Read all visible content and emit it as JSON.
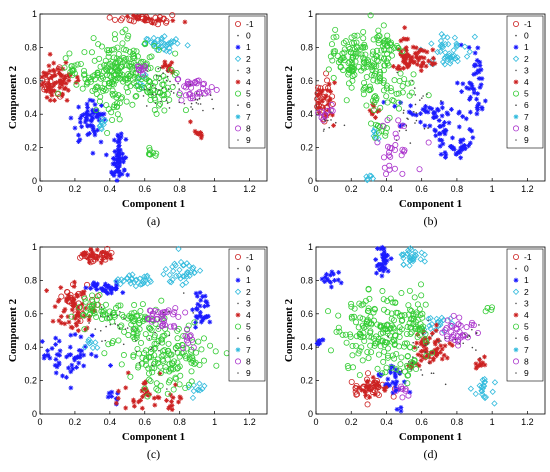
{
  "figure": {
    "legend_entries": [
      {
        "label": "-1",
        "color": "#cc2222",
        "marker": "circle"
      },
      {
        "label": "0",
        "color": "#444444",
        "marker": "dot"
      },
      {
        "label": "1",
        "color": "#1a1aff",
        "marker": "star"
      },
      {
        "label": "2",
        "color": "#33bbdd",
        "marker": "diamond"
      },
      {
        "label": "3",
        "color": "#555555",
        "marker": "dot"
      },
      {
        "label": "4",
        "color": "#cc2222",
        "marker": "star"
      },
      {
        "label": "5",
        "color": "#33cc33",
        "marker": "circle"
      },
      {
        "label": "6",
        "color": "#444444",
        "marker": "dot"
      },
      {
        "label": "7",
        "color": "#33bbdd",
        "marker": "star"
      },
      {
        "label": "8",
        "color": "#aa33cc",
        "marker": "circle"
      },
      {
        "label": "9",
        "color": "#555555",
        "marker": "dot"
      }
    ]
  },
  "chart_data": [
    {
      "type": "scatter",
      "panel_label": "(a)",
      "xlabel": "Component 1",
      "ylabel": "Component 2",
      "xlim": [
        0,
        1.3
      ],
      "ylim": [
        0,
        1
      ],
      "xticks": [
        "0",
        "0.2",
        "0.4",
        "0.6",
        "0.8",
        "1",
        "1.2"
      ],
      "yticks": [
        "0",
        "0.2",
        "0.4",
        "0.6",
        "0.8",
        "1"
      ],
      "series": [
        {
          "name": "-1",
          "color": "#cc2222",
          "marker": "circle",
          "clusters": [
            [
              0.6,
              0.97,
              0.08,
              0.015,
              25
            ],
            [
              0.06,
              0.6,
              0.03,
              0.06,
              15
            ]
          ]
        },
        {
          "name": "1",
          "color": "#1a1aff",
          "marker": "star",
          "clusters": [
            [
              0.45,
              0.12,
              0.02,
              0.1,
              70
            ],
            [
              0.28,
              0.35,
              0.05,
              0.06,
              45
            ],
            [
              0.3,
              0.4,
              0.03,
              0.03,
              15
            ]
          ]
        },
        {
          "name": "2",
          "color": "#33bbdd",
          "marker": "diamond",
          "clusters": [
            [
              0.72,
              0.82,
              0.06,
              0.02,
              35
            ],
            [
              0.36,
              0.34,
              0.02,
              0.02,
              10
            ],
            [
              0.58,
              0.6,
              0.02,
              0.02,
              8
            ]
          ]
        },
        {
          "name": "4",
          "color": "#cc2222",
          "marker": "star",
          "clusters": [
            [
              0.08,
              0.58,
              0.04,
              0.06,
              50
            ],
            [
              0.15,
              0.62,
              0.03,
              0.04,
              20
            ],
            [
              0.75,
              0.68,
              0.03,
              0.02,
              12
            ],
            [
              0.9,
              0.3,
              0.02,
              0.02,
              10
            ],
            [
              0.62,
              0.97,
              0.07,
              0.01,
              20
            ]
          ]
        },
        {
          "name": "5",
          "color": "#33cc33",
          "marker": "circle",
          "clusters": [
            [
              0.45,
              0.65,
              0.12,
              0.1,
              170
            ],
            [
              0.42,
              0.62,
              0.03,
              0.15,
              40
            ],
            [
              0.66,
              0.55,
              0.06,
              0.06,
              45
            ],
            [
              0.18,
              0.68,
              0.02,
              0.03,
              12
            ],
            [
              0.64,
              0.18,
              0.02,
              0.02,
              8
            ]
          ]
        },
        {
          "name": "8",
          "color": "#aa33cc",
          "marker": "circle",
          "clusters": [
            [
              0.88,
              0.55,
              0.05,
              0.04,
              35
            ],
            [
              0.58,
              0.68,
              0.02,
              0.02,
              10
            ]
          ]
        },
        {
          "name": "0",
          "color": "#444444",
          "marker": "dot",
          "clusters": [
            [
              0.7,
              0.55,
              0.08,
              0.08,
              30
            ],
            [
              0.88,
              0.5,
              0.06,
              0.05,
              20
            ]
          ]
        }
      ]
    },
    {
      "type": "scatter",
      "panel_label": "(b)",
      "xlabel": "Component 1",
      "ylabel": "Component 2",
      "xlim": [
        0,
        1.3
      ],
      "ylim": [
        0,
        1
      ],
      "xticks": [
        "0",
        "0.2",
        "0.4",
        "0.6",
        "0.8",
        "1",
        "1.2"
      ],
      "yticks": [
        "0",
        "0.2",
        "0.4",
        "0.6",
        "0.8",
        "1"
      ],
      "series": [
        {
          "name": "-1",
          "color": "#cc2222",
          "marker": "circle",
          "clusters": [
            [
              0.04,
              0.48,
              0.03,
              0.07,
              30
            ]
          ]
        },
        {
          "name": "1",
          "color": "#1a1aff",
          "marker": "star",
          "clusters": [
            [
              0.9,
              0.55,
              0.04,
              0.12,
              50
            ],
            [
              0.8,
              0.2,
              0.04,
              0.03,
              30
            ],
            [
              0.65,
              0.4,
              0.1,
              0.04,
              40
            ],
            [
              0.7,
              0.3,
              0.03,
              0.03,
              15
            ]
          ]
        },
        {
          "name": "2",
          "color": "#33bbdd",
          "marker": "diamond",
          "clusters": [
            [
              0.75,
              0.78,
              0.05,
              0.05,
              45
            ],
            [
              0.32,
              0.28,
              0.02,
              0.02,
              8
            ],
            [
              0.3,
              0.02,
              0.02,
              0.01,
              6
            ]
          ]
        },
        {
          "name": "4",
          "color": "#cc2222",
          "marker": "star",
          "clusters": [
            [
              0.55,
              0.72,
              0.06,
              0.04,
              55
            ],
            [
              0.5,
              0.8,
              0.02,
              0.05,
              15
            ],
            [
              0.04,
              0.48,
              0.03,
              0.07,
              25
            ],
            [
              0.33,
              0.42,
              0.02,
              0.02,
              8
            ]
          ]
        },
        {
          "name": "5",
          "color": "#33cc33",
          "marker": "circle",
          "clusters": [
            [
              0.25,
              0.73,
              0.1,
              0.08,
              140
            ],
            [
              0.4,
              0.55,
              0.08,
              0.1,
              50
            ],
            [
              0.35,
              0.3,
              0.03,
              0.03,
              12
            ],
            [
              0.42,
              0.8,
              0.04,
              0.03,
              20
            ]
          ]
        },
        {
          "name": "8",
          "color": "#aa33cc",
          "marker": "circle",
          "clusters": [
            [
              0.45,
              0.18,
              0.05,
              0.08,
              30
            ],
            [
              0.06,
              0.4,
              0.02,
              0.03,
              10
            ]
          ]
        },
        {
          "name": "0",
          "color": "#444444",
          "marker": "dot",
          "clusters": [
            [
              0.55,
              0.4,
              0.06,
              0.1,
              25
            ],
            [
              0.05,
              0.35,
              0.03,
              0.03,
              10
            ]
          ]
        }
      ]
    },
    {
      "type": "scatter",
      "panel_label": "(c)",
      "xlabel": "Component 1",
      "ylabel": "Component 2",
      "xlim": [
        0,
        1.3
      ],
      "ylim": [
        0,
        1
      ],
      "xticks": [
        "0",
        "0.2",
        "0.4",
        "0.6",
        "0.8",
        "1",
        "1.2"
      ],
      "yticks": [
        "0",
        "0.2",
        "0.4",
        "0.6",
        "0.8",
        "1"
      ],
      "series": [
        {
          "name": "-1",
          "color": "#cc2222",
          "marker": "circle",
          "clusters": [
            [
              0.33,
              0.95,
              0.06,
              0.02,
              25
            ],
            [
              0.22,
              0.68,
              0.05,
              0.05,
              25
            ]
          ]
        },
        {
          "name": "1",
          "color": "#1a1aff",
          "marker": "star",
          "clusters": [
            [
              0.38,
              0.75,
              0.05,
              0.02,
              35
            ],
            [
              0.15,
              0.35,
              0.1,
              0.06,
              55
            ],
            [
              0.93,
              0.62,
              0.03,
              0.06,
              30
            ],
            [
              0.42,
              0.1,
              0.02,
              0.02,
              8
            ]
          ]
        },
        {
          "name": "2",
          "color": "#33bbdd",
          "marker": "diamond",
          "clusters": [
            [
              0.55,
              0.8,
              0.06,
              0.02,
              30
            ],
            [
              0.82,
              0.85,
              0.05,
              0.04,
              35
            ],
            [
              0.9,
              0.15,
              0.02,
              0.02,
              10
            ],
            [
              0.3,
              0.42,
              0.02,
              0.02,
              8
            ]
          ]
        },
        {
          "name": "4",
          "color": "#cc2222",
          "marker": "star",
          "clusters": [
            [
              0.2,
              0.63,
              0.06,
              0.08,
              60
            ],
            [
              0.32,
              0.95,
              0.06,
              0.02,
              25
            ],
            [
              0.58,
              0.12,
              0.06,
              0.05,
              30
            ],
            [
              0.77,
              0.08,
              0.03,
              0.03,
              12
            ]
          ]
        },
        {
          "name": "5",
          "color": "#33cc33",
          "marker": "circle",
          "clusters": [
            [
              0.72,
              0.35,
              0.12,
              0.1,
              150
            ],
            [
              0.55,
              0.55,
              0.06,
              0.06,
              45
            ],
            [
              0.42,
              0.6,
              0.04,
              0.03,
              20
            ],
            [
              0.28,
              0.62,
              0.04,
              0.04,
              25
            ]
          ]
        },
        {
          "name": "8",
          "color": "#aa33cc",
          "marker": "circle",
          "clusters": [
            [
              0.7,
              0.58,
              0.06,
              0.04,
              35
            ],
            [
              0.85,
              0.45,
              0.02,
              0.03,
              10
            ]
          ]
        },
        {
          "name": "0",
          "color": "#444444",
          "marker": "dot",
          "clusters": [
            [
              0.6,
              0.45,
              0.1,
              0.1,
              25
            ],
            [
              0.35,
              0.55,
              0.06,
              0.06,
              15
            ]
          ]
        }
      ]
    },
    {
      "type": "scatter",
      "panel_label": "(d)",
      "xlabel": "Component 1",
      "ylabel": "Component 2",
      "xlim": [
        0,
        1.3
      ],
      "ylim": [
        0,
        1
      ],
      "xticks": [
        "0",
        "0.2",
        "0.4",
        "0.6",
        "0.8",
        "1",
        "1.2"
      ],
      "yticks": [
        "0",
        "0.2",
        "0.4",
        "0.6",
        "0.8",
        "1"
      ],
      "series": [
        {
          "name": "-1",
          "color": "#cc2222",
          "marker": "circle",
          "clusters": [
            [
              0.3,
              0.16,
              0.06,
              0.04,
              30
            ]
          ]
        },
        {
          "name": "1",
          "color": "#1a1aff",
          "marker": "star",
          "clusters": [
            [
              0.38,
              0.92,
              0.02,
              0.06,
              35
            ],
            [
              0.1,
              0.8,
              0.03,
              0.03,
              15
            ],
            [
              0.02,
              0.42,
              0.02,
              0.02,
              10
            ],
            [
              0.42,
              0.2,
              0.05,
              0.05,
              30
            ],
            [
              0.48,
              0.02,
              0.01,
              0.01,
              4
            ]
          ]
        },
        {
          "name": "2",
          "color": "#33bbdd",
          "marker": "diamond",
          "clusters": [
            [
              0.55,
              0.95,
              0.04,
              0.04,
              30
            ],
            [
              0.95,
              0.15,
              0.03,
              0.04,
              20
            ],
            [
              0.7,
              0.55,
              0.05,
              0.03,
              20
            ]
          ]
        },
        {
          "name": "4",
          "color": "#cc2222",
          "marker": "star",
          "clusters": [
            [
              0.65,
              0.4,
              0.06,
              0.05,
              55
            ],
            [
              0.32,
              0.16,
              0.05,
              0.03,
              25
            ],
            [
              0.92,
              0.3,
              0.02,
              0.02,
              10
            ],
            [
              0.55,
              0.3,
              0.02,
              0.02,
              8
            ]
          ]
        },
        {
          "name": "5",
          "color": "#33cc33",
          "marker": "circle",
          "clusters": [
            [
              0.35,
              0.5,
              0.12,
              0.12,
              170
            ],
            [
              0.55,
              0.55,
              0.05,
              0.08,
              40
            ],
            [
              0.5,
              0.28,
              0.05,
              0.05,
              20
            ],
            [
              0.98,
              0.62,
              0.01,
              0.01,
              4
            ]
          ]
        },
        {
          "name": "8",
          "color": "#aa33cc",
          "marker": "circle",
          "clusters": [
            [
              0.8,
              0.5,
              0.06,
              0.04,
              35
            ],
            [
              0.5,
              0.14,
              0.02,
              0.02,
              8
            ]
          ]
        },
        {
          "name": "0",
          "color": "#444444",
          "marker": "dot",
          "clusters": [
            [
              0.6,
              0.35,
              0.08,
              0.08,
              25
            ],
            [
              0.88,
              0.45,
              0.05,
              0.05,
              15
            ]
          ]
        }
      ]
    }
  ]
}
